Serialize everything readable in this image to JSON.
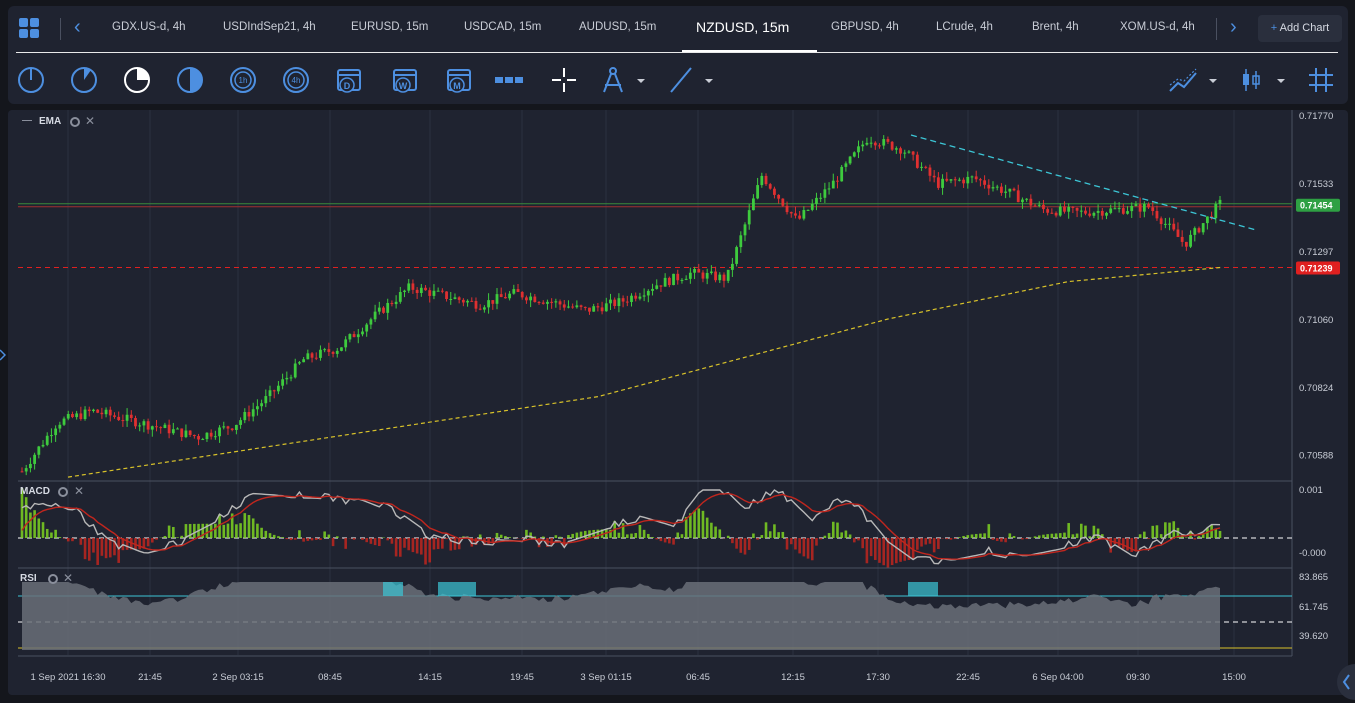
{
  "tabs": [
    {
      "label": "GDX.US-d, 4h"
    },
    {
      "label": "USDIndSep21, 4h"
    },
    {
      "label": "EURUSD, 15m"
    },
    {
      "label": "USDCAD, 15m"
    },
    {
      "label": "AUDUSD, 15m"
    },
    {
      "label": "NZDUSD, 15m",
      "active": true
    },
    {
      "label": "GBPUSD, 4h"
    },
    {
      "label": "LCrude, 4h"
    },
    {
      "label": "Brent, 4h"
    },
    {
      "label": "XOM.US-d, 4h"
    }
  ],
  "add_chart_label": "Add Chart",
  "toolbar": {
    "timeframes": [
      "1m",
      "5m",
      "15m",
      "30m",
      "1h",
      "4h",
      "D",
      "W",
      "M"
    ],
    "accent": "#4d8fe0"
  },
  "chart": {
    "main_indicator": "EMA",
    "price_ticks": [
      "0.71770",
      "0.71533",
      "0.71297",
      "0.71060",
      "0.70824",
      "0.70588"
    ],
    "current_price": "0.71454",
    "alert_price": "0.71239",
    "time_ticks": [
      "1 Sep 2021 16:30",
      "21:45",
      "2 Sep 03:15",
      "08:45",
      "14:15",
      "19:45",
      "3 Sep 01:15",
      "06:45",
      "12:15",
      "17:30",
      "22:45",
      "6 Sep 04:00",
      "09:30",
      "15:00"
    ],
    "colors": {
      "up": "#3ecb3e",
      "down": "#e03030",
      "ema": "#d8c22a",
      "trend": "#3cc6d6",
      "price_tag": "#2ea043",
      "alert_tag": "#e02020"
    }
  },
  "macd": {
    "label": "MACD",
    "ticks": [
      "0.001",
      "-0.000"
    ]
  },
  "rsi": {
    "label": "RSI",
    "ticks": [
      "83.865",
      "61.745",
      "39.620"
    ]
  },
  "chart_data": {
    "type": "line",
    "title": "NZDUSD, 15m",
    "ylim": [
      0.705,
      0.7178
    ],
    "series": [
      {
        "name": "EMA",
        "x": [
          "1 Sep 2021 16:30",
          "2 Sep 03:15",
          "3 Sep 01:15",
          "3 Sep 17:30",
          "6 Sep 04:00",
          "6 Sep 13:00"
        ],
        "values": [
          0.7051,
          0.706,
          0.7079,
          0.7106,
          0.7119,
          0.7124
        ]
      }
    ],
    "price_path": [
      0.7053,
      0.707,
      0.7074,
      0.7071,
      0.7068,
      0.7065,
      0.7069,
      0.7079,
      0.7092,
      0.7096,
      0.7107,
      0.7117,
      0.7114,
      0.7111,
      0.7115,
      0.7112,
      0.7109,
      0.7112,
      0.7118,
      0.7122,
      0.712,
      0.7156,
      0.714,
      0.7153,
      0.7169,
      0.7165,
      0.7153,
      0.7155,
      0.715,
      0.7144,
      0.7143,
      0.7144,
      0.7145,
      0.7132,
      0.7146
    ]
  }
}
